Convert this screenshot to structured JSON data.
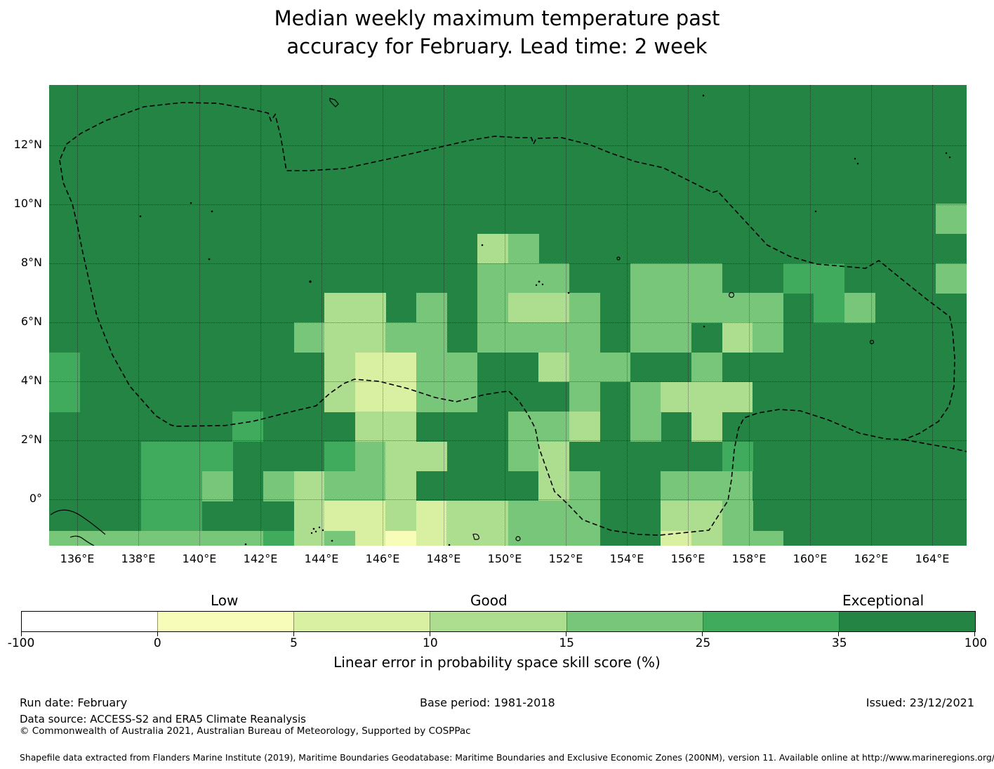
{
  "title": {
    "line1": "Median weekly maximum temperature past",
    "line2": "accuracy for February. Lead time: 2 week"
  },
  "map": {
    "x_tick_labels": [
      "136°E",
      "138°E",
      "140°E",
      "142°E",
      "144°E",
      "146°E",
      "148°E",
      "150°E",
      "152°E",
      "154°E",
      "156°E",
      "158°E",
      "160°E",
      "162°E",
      "164°E"
    ],
    "y_tick_labels": [
      "12°N",
      "10°N",
      "8°N",
      "6°N",
      "4°N",
      "2°N",
      "0°"
    ]
  },
  "chart_data": {
    "type": "heatmap",
    "title": "Median weekly maximum temperature past accuracy for February. Lead time: 2 week",
    "xlabel": "Linear error in probability space skill score (%)",
    "lon_range": [
      135,
      165
    ],
    "lat_range": [
      -1.5,
      14
    ],
    "cell_size_deg": 1,
    "thresholds": [
      -100,
      0,
      5,
      10,
      15,
      25,
      35,
      100
    ],
    "palette": [
      "#ffffff",
      "#f7fcb9",
      "#d9f0a3",
      "#addd8e",
      "#78c679",
      "#41ab5d",
      "#238443"
    ],
    "legend_categories": [
      "Low",
      "Good",
      "Exceptional"
    ],
    "grid_row_top_latitudes": [
      14,
      13,
      12,
      11,
      10,
      9,
      8,
      7,
      6,
      5,
      4,
      3,
      2,
      1,
      0,
      -1
    ],
    "grid_col_west_longitudes_start": 135,
    "grid": [
      "666666666666666666666666666666",
      "666666666666666666666666666666",
      "666666666666666666666666666666",
      "666666666666666666666666666666",
      "666666666666666666666666666664",
      "666666666666663466666666666666",
      "666666666666664446644466556664",
      "666666666336464334644444654666",
      "666666664334464444644634666666",
      "566666666322446634466466666666",
      "566666666322446664643336666666",
      "666666566633666443646366666666",
      "666555666543366436666656666666",
      "666554643443666634664446666666",
      "666556663223233444663346666666",
      "444444453421233444662344666666"
    ]
  },
  "colorbar": {
    "categories": [
      "Low",
      "Good",
      "Exceptional"
    ],
    "tick_labels": [
      "-100",
      "0",
      "5",
      "10",
      "15",
      "25",
      "35",
      "100"
    ],
    "segment_colors": [
      "#ffffff",
      "#f7fcb9",
      "#d9f0a3",
      "#addd8e",
      "#78c679",
      "#41ab5d",
      "#238443"
    ],
    "axis_label": "Linear error in probability space skill score (%)"
  },
  "footer": {
    "run_date": "Run date: February",
    "base_period": "Base period: 1981-2018",
    "issued": "Issued: 23/12/2021",
    "data_source": "Data source: ACCESS-S2 and ERA5 Climate Reanalysis",
    "copyright": "© Commonwealth of Australia 2021, Australian Bureau of Meteorology, Supported by COSPPac",
    "shapefile_note": "Shapefile data extracted from Flanders Marine Institute (2019), Maritime Boundaries Geodatabase: Maritime Boundaries and Exclusive Economic Zones (200NM), version 11. Available online at http://www.marineregions.org/."
  }
}
